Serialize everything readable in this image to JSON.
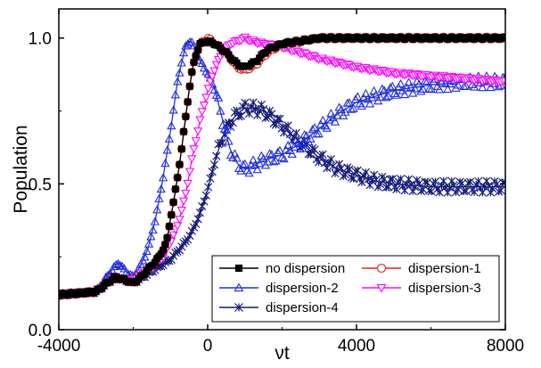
{
  "chart_data": {
    "type": "line",
    "title": "",
    "xlabel": "νt",
    "ylabel": "Population",
    "xlim": [
      -4000,
      8000
    ],
    "ylim": [
      0.0,
      1.1
    ],
    "xticks": [
      "-4000",
      "0",
      "4000",
      "8000"
    ],
    "yticks": [
      "0.0",
      "0.5",
      "1.0"
    ],
    "legend_position": "bottom-right",
    "series": [
      {
        "name": "no dispersion",
        "color": "#000000",
        "marker": "square-filled",
        "x": [
          -4000,
          -3000,
          -2500,
          -2200,
          -2000,
          -1800,
          -1500,
          -1300,
          -1100,
          -1000,
          -900,
          -800,
          -700,
          -600,
          -500,
          -400,
          -300,
          -200,
          0,
          200,
          500,
          800,
          1000,
          1300,
          1600,
          2000,
          2500,
          3000,
          4000,
          5000,
          6000,
          7000,
          8000
        ],
        "y": [
          0.12,
          0.13,
          0.18,
          0.17,
          0.16,
          0.18,
          0.22,
          0.25,
          0.3,
          0.38,
          0.45,
          0.53,
          0.62,
          0.72,
          0.82,
          0.9,
          0.95,
          0.98,
          0.99,
          0.98,
          0.95,
          0.91,
          0.9,
          0.92,
          0.96,
          0.98,
          0.99,
          1.0,
          1.0,
          1.0,
          1.0,
          1.0,
          1.0
        ]
      },
      {
        "name": "dispersion-1",
        "color": "#e8231e",
        "marker": "circle-open",
        "x": [
          -4000,
          -3000,
          -2500,
          -2200,
          -2000,
          -1800,
          -1500,
          -1300,
          -1100,
          -1000,
          -900,
          -800,
          -700,
          -600,
          -500,
          -400,
          -300,
          -200,
          0,
          200,
          500,
          800,
          1000,
          1300,
          1600,
          2000,
          2500,
          3000,
          4000,
          5000,
          6000,
          7000,
          8000
        ],
        "y": [
          0.12,
          0.13,
          0.18,
          0.17,
          0.16,
          0.18,
          0.22,
          0.25,
          0.3,
          0.38,
          0.45,
          0.53,
          0.62,
          0.72,
          0.82,
          0.9,
          0.95,
          0.98,
          1.0,
          0.98,
          0.95,
          0.9,
          0.89,
          0.91,
          0.95,
          0.98,
          0.99,
          1.0,
          1.0,
          1.0,
          1.0,
          1.0,
          1.0
        ]
      },
      {
        "name": "dispersion-2",
        "color": "#1f2fe0",
        "marker": "triangle-up-open",
        "x": [
          -4000,
          -3000,
          -2600,
          -2400,
          -2200,
          -2000,
          -1800,
          -1600,
          -1400,
          -1200,
          -1000,
          -800,
          -600,
          -500,
          -400,
          -300,
          -200,
          -100,
          0,
          200,
          400,
          600,
          800,
          1000,
          1200,
          1500,
          2000,
          2500,
          3000,
          3500,
          4000,
          5000,
          6000,
          7000,
          8000
        ],
        "y": [
          0.12,
          0.13,
          0.2,
          0.23,
          0.2,
          0.18,
          0.22,
          0.28,
          0.38,
          0.52,
          0.68,
          0.86,
          0.97,
          0.99,
          0.98,
          0.95,
          0.92,
          0.9,
          0.88,
          0.82,
          0.72,
          0.62,
          0.57,
          0.55,
          0.56,
          0.58,
          0.6,
          0.64,
          0.69,
          0.74,
          0.78,
          0.82,
          0.84,
          0.85,
          0.85
        ]
      },
      {
        "name": "dispersion-3",
        "color": "#ff00ff",
        "marker": "triangle-down-open",
        "x": [
          -4000,
          -3000,
          -2500,
          -2200,
          -2000,
          -1800,
          -1500,
          -1200,
          -1000,
          -800,
          -600,
          -400,
          -200,
          0,
          200,
          400,
          600,
          800,
          1000,
          1200,
          1500,
          2000,
          2500,
          3000,
          4000,
          5000,
          6000,
          7000,
          8000
        ],
        "y": [
          0.12,
          0.13,
          0.18,
          0.17,
          0.17,
          0.19,
          0.21,
          0.25,
          0.3,
          0.36,
          0.46,
          0.6,
          0.72,
          0.82,
          0.9,
          0.95,
          0.98,
          0.99,
          1.0,
          0.99,
          0.98,
          0.97,
          0.95,
          0.93,
          0.9,
          0.88,
          0.87,
          0.86,
          0.85
        ]
      },
      {
        "name": "dispersion-4",
        "color": "#141a7a",
        "marker": "star",
        "x": [
          -4000,
          -3000,
          -2500,
          -2200,
          -2000,
          -1500,
          -1000,
          -800,
          -600,
          -400,
          -200,
          0,
          200,
          400,
          600,
          800,
          1000,
          1200,
          1500,
          2000,
          2500,
          3000,
          3500,
          4000,
          4500,
          5000,
          6000,
          7000,
          8000
        ],
        "y": [
          0.12,
          0.13,
          0.18,
          0.17,
          0.16,
          0.2,
          0.24,
          0.27,
          0.3,
          0.34,
          0.4,
          0.48,
          0.58,
          0.66,
          0.71,
          0.74,
          0.76,
          0.76,
          0.75,
          0.7,
          0.64,
          0.59,
          0.55,
          0.53,
          0.51,
          0.5,
          0.49,
          0.49,
          0.49
        ]
      }
    ]
  }
}
